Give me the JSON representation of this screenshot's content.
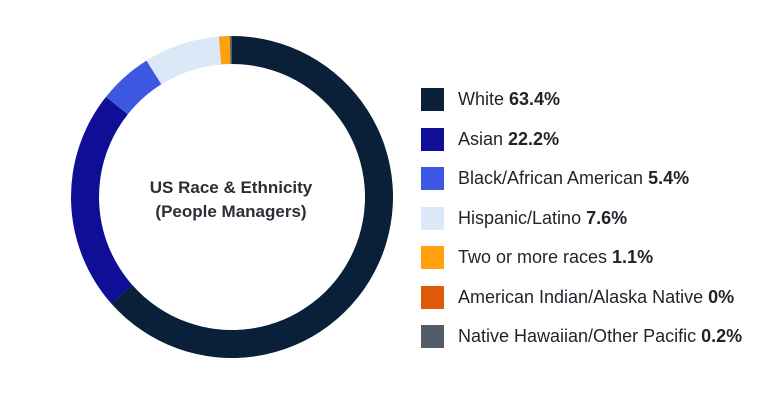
{
  "chart_data": {
    "type": "pie",
    "title": "US Race & Ethnicity",
    "subtitle": "(People Managers)",
    "legend_position": "right",
    "series": [
      {
        "name": "White",
        "label": "63.4%",
        "value": 63.4,
        "color": "#0a1f38"
      },
      {
        "name": "Asian",
        "label": "22.2%",
        "value": 22.2,
        "color": "#0e0e96"
      },
      {
        "name": "Black/African American",
        "label": "5.4%",
        "value": 5.4,
        "color": "#3d57e3"
      },
      {
        "name": "Hispanic/Latino",
        "label": "7.6%",
        "value": 7.6,
        "color": "#dbe8f7"
      },
      {
        "name": "Two or more races",
        "label": "1.1%",
        "value": 1.1,
        "color": "#ffa10f"
      },
      {
        "name": "American Indian/Alaska Native",
        "label": "0%",
        "value": 0,
        "color": "#e05a0a"
      },
      {
        "name": "Native Hawaiian/Other Pacific",
        "label": "0.2%",
        "value": 0.2,
        "color": "#525d68"
      }
    ]
  }
}
